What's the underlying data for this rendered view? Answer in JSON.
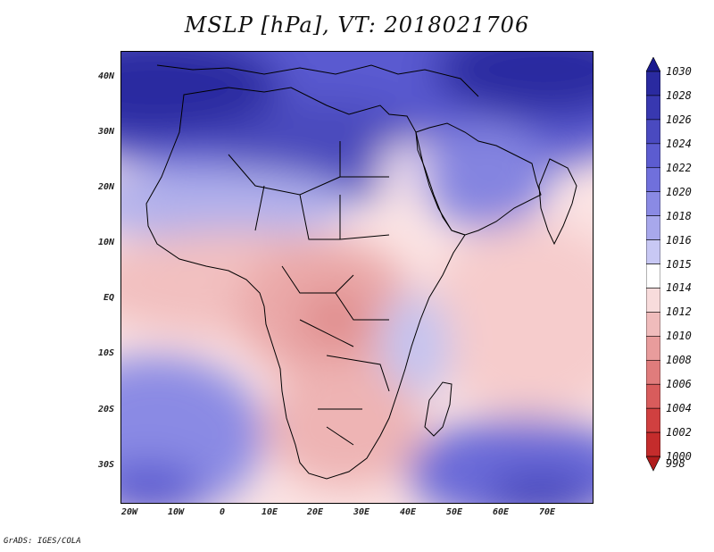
{
  "title": "MSLP [hPa], VT: 2018021706",
  "footer": "GrADS: IGES/COLA",
  "map": {
    "type": "filled-contour-map",
    "region": "Africa and Arabian Peninsula",
    "lon_range": [
      -20,
      80
    ],
    "lat_range": [
      -37,
      45
    ],
    "lat_ticks": [
      {
        "value": 40,
        "label": "40N"
      },
      {
        "value": 30,
        "label": "30N"
      },
      {
        "value": 20,
        "label": "20N"
      },
      {
        "value": 10,
        "label": "10N"
      },
      {
        "value": 0,
        "label": "EQ"
      },
      {
        "value": -10,
        "label": "10S"
      },
      {
        "value": -20,
        "label": "20S"
      },
      {
        "value": -30,
        "label": "30S"
      }
    ],
    "lon_ticks": [
      {
        "value": -20,
        "label": "20W"
      },
      {
        "value": -10,
        "label": "10W"
      },
      {
        "value": 0,
        "label": "0"
      },
      {
        "value": 10,
        "label": "10E"
      },
      {
        "value": 20,
        "label": "20E"
      },
      {
        "value": 30,
        "label": "30E"
      },
      {
        "value": 40,
        "label": "40E"
      },
      {
        "value": 50,
        "label": "50E"
      },
      {
        "value": 60,
        "label": "60E"
      },
      {
        "value": 70,
        "label": "70E"
      }
    ]
  },
  "colorbar": {
    "levels": [
      {
        "value": "1030",
        "color": "#1a1a8f"
      },
      {
        "value": "1028",
        "color": "#2a2aa0"
      },
      {
        "value": "1026",
        "color": "#3838b0"
      },
      {
        "value": "1024",
        "color": "#4a4ac0"
      },
      {
        "value": "1022",
        "color": "#5c5cd0"
      },
      {
        "value": "1020",
        "color": "#7070dc"
      },
      {
        "value": "1018",
        "color": "#8a8ae4"
      },
      {
        "value": "1016",
        "color": "#a8a8ec"
      },
      {
        "value": "1015",
        "color": "#c8c8f4"
      },
      {
        "value": "1014",
        "color": "#ffffff"
      },
      {
        "value": "1012",
        "color": "#f8dcdc"
      },
      {
        "value": "1010",
        "color": "#f0bcbc"
      },
      {
        "value": "1008",
        "color": "#e89c9c"
      },
      {
        "value": "1006",
        "color": "#e07c7c"
      },
      {
        "value": "1004",
        "color": "#d85c5c"
      },
      {
        "value": "1002",
        "color": "#d04040"
      },
      {
        "value": "1000",
        "color": "#c42c2c"
      },
      {
        "value": "998",
        "color": "#b01c1c"
      }
    ]
  }
}
